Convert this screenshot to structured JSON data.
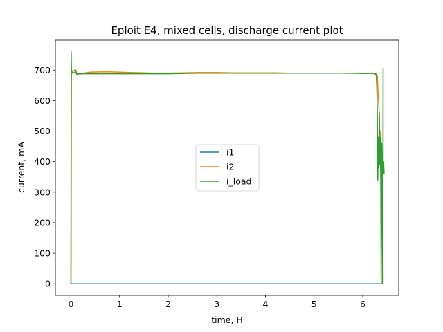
{
  "chart_data": {
    "type": "line",
    "title": "Eploit E4, mixed cells, discharge current plot",
    "xlabel": "time, H",
    "ylabel": "current, mA",
    "xlim": [
      -0.32,
      6.74
    ],
    "ylim": [
      -38,
      798
    ],
    "xticks": [
      0,
      1,
      2,
      3,
      4,
      5,
      6
    ],
    "yticks": [
      0,
      100,
      200,
      300,
      400,
      500,
      600,
      700
    ],
    "grid": false,
    "legend_position": "center",
    "series": [
      {
        "name": "i1",
        "color": "#1f77b4",
        "x": [
          0,
          0.5,
          1,
          2,
          3,
          4,
          5,
          6,
          6.42
        ],
        "y": [
          0,
          0,
          0,
          0,
          0,
          0,
          0,
          0,
          0
        ]
      },
      {
        "name": "i2",
        "color": "#ff7f0e",
        "x": [
          0,
          0.01,
          0.02,
          0.04,
          0.07,
          0.1,
          0.12,
          0.15,
          0.25,
          0.4,
          0.6,
          0.8,
          1.0,
          1.2,
          1.5,
          1.7,
          2.0,
          2.3,
          2.6,
          3.0,
          3.3,
          3.6,
          3.9,
          4.2,
          4.5,
          4.8,
          5.1,
          5.4,
          5.7,
          6.0,
          6.2,
          6.28,
          6.3,
          6.32,
          6.34,
          6.35,
          6.37,
          6.38,
          6.4,
          6.41,
          6.42,
          6.42
        ],
        "y": [
          0,
          690,
          698,
          695,
          700,
          698,
          688,
          688,
          690,
          693,
          694,
          694,
          693,
          692,
          691,
          690,
          690,
          691,
          692,
          692,
          691,
          691,
          691,
          691,
          690,
          690,
          690,
          690,
          690,
          689,
          689,
          688,
          680,
          610,
          560,
          480,
          500,
          390,
          360,
          380,
          0,
          0
        ]
      },
      {
        "name": "i_load",
        "color": "#2ca02c",
        "x": [
          0,
          0.005,
          0.01,
          0.015,
          0.03,
          0.06,
          0.09,
          0.1,
          0.12,
          0.15,
          0.25,
          0.4,
          0.6,
          0.8,
          1.0,
          1.3,
          1.6,
          2.0,
          2.3,
          2.6,
          3.0,
          3.3,
          3.6,
          4.0,
          4.3,
          4.6,
          5.0,
          5.3,
          5.6,
          6.0,
          6.2,
          6.26,
          6.28,
          6.29,
          6.3,
          6.31,
          6.32,
          6.33,
          6.34,
          6.35,
          6.36,
          6.37,
          6.38,
          6.39,
          6.4,
          6.41,
          6.42,
          6.42,
          6.43,
          6.44
        ],
        "y": [
          0,
          760,
          690,
          695,
          690,
          692,
          690,
          700,
          685,
          687,
          688,
          688,
          688,
          688,
          688,
          688,
          688,
          688,
          689,
          690,
          690,
          690,
          690,
          690,
          690,
          690,
          690,
          690,
          690,
          689,
          689,
          688,
          680,
          640,
          560,
          340,
          480,
          380,
          560,
          390,
          480,
          350,
          0,
          460,
          380,
          0,
          705,
          380,
          400,
          360
        ]
      }
    ]
  }
}
